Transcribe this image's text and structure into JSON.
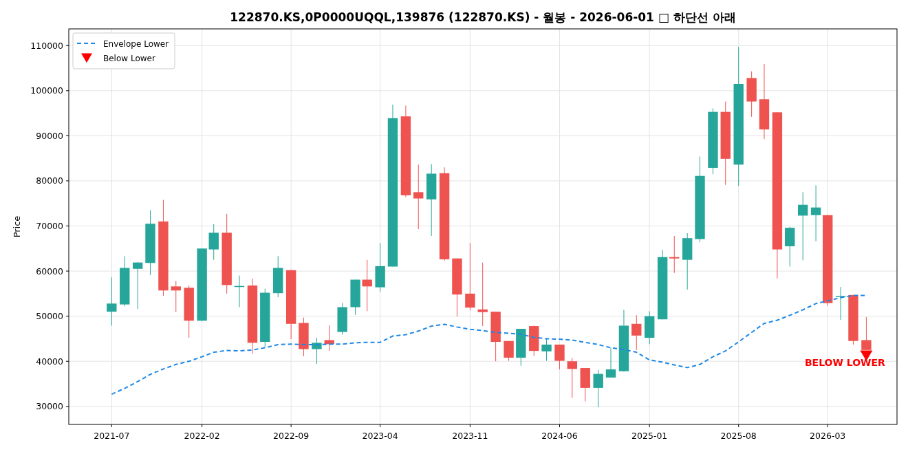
{
  "chart_data": {
    "type": "candlestick",
    "title": "122870.KS,0P0000UQQL,139876 (122870.KS) - 월봉 - 2026-06-01 □ 하단선 아래",
    "ylabel": "Price",
    "x": [
      "2021-07",
      "2021-08",
      "2021-09",
      "2021-10",
      "2021-11",
      "2021-12",
      "2022-01",
      "2022-02",
      "2022-03",
      "2022-04",
      "2022-05",
      "2022-06",
      "2022-07",
      "2022-08",
      "2022-09",
      "2022-10",
      "2022-11",
      "2022-12",
      "2023-01",
      "2023-02",
      "2023-03",
      "2023-04",
      "2023-05",
      "2023-06",
      "2023-07",
      "2023-08",
      "2023-09",
      "2023-10",
      "2023-11",
      "2023-12",
      "2024-01",
      "2024-02",
      "2024-03",
      "2024-04",
      "2024-05",
      "2024-06",
      "2024-07",
      "2024-08",
      "2024-09",
      "2024-10",
      "2024-11",
      "2024-12",
      "2025-01",
      "2025-02",
      "2025-03",
      "2025-04",
      "2025-05",
      "2025-06",
      "2025-07",
      "2025-08",
      "2025-09",
      "2025-10",
      "2025-11",
      "2025-12",
      "2026-01",
      "2026-02",
      "2026-03",
      "2026-04",
      "2026-05",
      "2026-06"
    ],
    "xlim": [
      "2021-03-21",
      "2026-08-13"
    ],
    "xticks": [
      "2021-07",
      "2022-02",
      "2022-09",
      "2023-04",
      "2023-11",
      "2024-06",
      "2025-01",
      "2025-08",
      "2026-03"
    ],
    "ylim": [
      26000,
      113700
    ],
    "yticks": [
      30000,
      40000,
      50000,
      60000,
      70000,
      80000,
      90000,
      100000,
      110000
    ],
    "grid": true,
    "legend": "top left",
    "series": [
      {
        "type": "candlestick",
        "ohlc": [
          [
            51000,
            58600,
            47900,
            52800
          ],
          [
            52600,
            63300,
            52200,
            60700
          ],
          [
            60500,
            62000,
            51600,
            61900
          ],
          [
            61800,
            73500,
            59100,
            70500
          ],
          [
            71000,
            75800,
            54500,
            55700
          ],
          [
            56600,
            57800,
            50900,
            55700
          ],
          [
            56300,
            56800,
            45200,
            49000
          ],
          [
            49000,
            65000,
            48900,
            65000
          ],
          [
            64800,
            70400,
            62500,
            68500
          ],
          [
            68500,
            72700,
            55000,
            56900
          ],
          [
            56600,
            59000,
            52000,
            56700
          ],
          [
            56800,
            58300,
            41700,
            44100
          ],
          [
            44300,
            56100,
            43100,
            55200
          ],
          [
            55100,
            63300,
            54200,
            60700
          ],
          [
            60200,
            60300,
            44900,
            48300
          ],
          [
            48500,
            49700,
            41100,
            42700
          ],
          [
            42700,
            45200,
            39400,
            44100
          ],
          [
            44700,
            48000,
            42300,
            43800
          ],
          [
            46500,
            52900,
            45900,
            52000
          ],
          [
            52000,
            58100,
            50300,
            58100
          ],
          [
            58100,
            62500,
            51100,
            56600
          ],
          [
            56400,
            66200,
            55400,
            61100
          ],
          [
            61000,
            96900,
            61000,
            93900
          ],
          [
            94300,
            96700,
            76400,
            76800
          ],
          [
            77500,
            83600,
            69300,
            76100
          ],
          [
            75900,
            83700,
            67800,
            81600
          ],
          [
            81700,
            83000,
            62300,
            62600
          ],
          [
            62800,
            62800,
            49900,
            54800
          ],
          [
            55000,
            66200,
            51300,
            51900
          ],
          [
            51500,
            61900,
            47800,
            50900
          ],
          [
            51000,
            51000,
            40000,
            44300
          ],
          [
            44500,
            44500,
            40100,
            40800
          ],
          [
            40800,
            47200,
            39000,
            47200
          ],
          [
            47800,
            47900,
            41200,
            42300
          ],
          [
            42200,
            45000,
            40100,
            43700
          ],
          [
            43700,
            43700,
            38200,
            40100
          ],
          [
            40000,
            40700,
            31900,
            38300
          ],
          [
            38500,
            38500,
            31100,
            34100
          ],
          [
            34100,
            38100,
            29800,
            37200
          ],
          [
            36400,
            43000,
            36400,
            38200
          ],
          [
            37800,
            51400,
            37700,
            47900
          ],
          [
            48300,
            50200,
            42500,
            45700
          ],
          [
            45200,
            51100,
            43800,
            50000
          ],
          [
            49300,
            64700,
            49300,
            63100
          ],
          [
            63100,
            67800,
            59600,
            62800
          ],
          [
            62500,
            68400,
            55900,
            67300
          ],
          [
            67100,
            85400,
            66400,
            81100
          ],
          [
            82900,
            96100,
            81500,
            95300
          ],
          [
            95300,
            97600,
            79100,
            84900
          ],
          [
            83600,
            109700,
            78900,
            101500
          ],
          [
            102800,
            104300,
            94200,
            97600
          ],
          [
            98100,
            105900,
            89300,
            91400
          ],
          [
            95200,
            95200,
            58400,
            64800
          ],
          [
            65500,
            69800,
            61000,
            69600
          ],
          [
            72300,
            77500,
            62400,
            74700
          ],
          [
            72400,
            79000,
            66600,
            74100
          ],
          [
            72400,
            72400,
            52300,
            52900
          ],
          [
            54400,
            56500,
            49200,
            54500
          ],
          [
            54700,
            54700,
            43700,
            44500
          ],
          [
            44700,
            49800,
            42500,
            42500
          ]
        ],
        "colors": [
          "#26a69a",
          "#26a69a",
          "#26a69a",
          "#26a69a",
          "#ef5350",
          "#ef5350",
          "#ef5350",
          "#26a69a",
          "#26a69a",
          "#ef5350",
          "#26a69a",
          "#ef5350",
          "#26a69a",
          "#26a69a",
          "#ef5350",
          "#ef5350",
          "#26a69a",
          "#ef5350",
          "#26a69a",
          "#26a69a",
          "#ef5350",
          "#26a69a",
          "#26a69a",
          "#ef5350",
          "#ef5350",
          "#26a69a",
          "#ef5350",
          "#ef5350",
          "#ef5350",
          "#ef5350",
          "#ef5350",
          "#ef5350",
          "#26a69a",
          "#ef5350",
          "#26a69a",
          "#ef5350",
          "#ef5350",
          "#ef5350",
          "#26a69a",
          "#26a69a",
          "#26a69a",
          "#ef5350",
          "#26a69a",
          "#26a69a",
          "#ef5350",
          "#26a69a",
          "#26a69a",
          "#26a69a",
          "#ef5350",
          "#26a69a",
          "#ef5350",
          "#ef5350",
          "#ef5350",
          "#26a69a",
          "#26a69a",
          "#26a69a",
          "#ef5350",
          "#26a69a",
          "#ef5350",
          "#ef5350"
        ]
      },
      {
        "type": "line",
        "name": "Envelope Lower",
        "color": "#1e88e5",
        "line_style": "dashed",
        "marker": "none",
        "values": [
          32700,
          34000,
          35500,
          37100,
          38300,
          39300,
          40000,
          41000,
          42000,
          42400,
          42300,
          42500,
          43000,
          43700,
          43800,
          43700,
          43700,
          43800,
          43800,
          44100,
          44200,
          44200,
          45600,
          45900,
          46700,
          47800,
          48200,
          47600,
          47100,
          46800,
          46400,
          46200,
          46000,
          45300,
          45000,
          44900,
          44700,
          44200,
          43700,
          43000,
          42600,
          42000,
          40300,
          39800,
          39200,
          38600,
          39300,
          41000,
          42300,
          44300,
          46400,
          48400,
          49100,
          50200,
          51400,
          52800,
          53400,
          54100,
          54600,
          54600
        ]
      },
      {
        "type": "scatter",
        "name": "Below Lower",
        "color": "#ff0000",
        "marker": "triangle",
        "x": [
          "2026-06"
        ],
        "values": [
          41300
        ]
      }
    ],
    "annotations": [
      {
        "text": "BELOW LOWER",
        "x": "2026-06",
        "y": 39800
      }
    ]
  }
}
